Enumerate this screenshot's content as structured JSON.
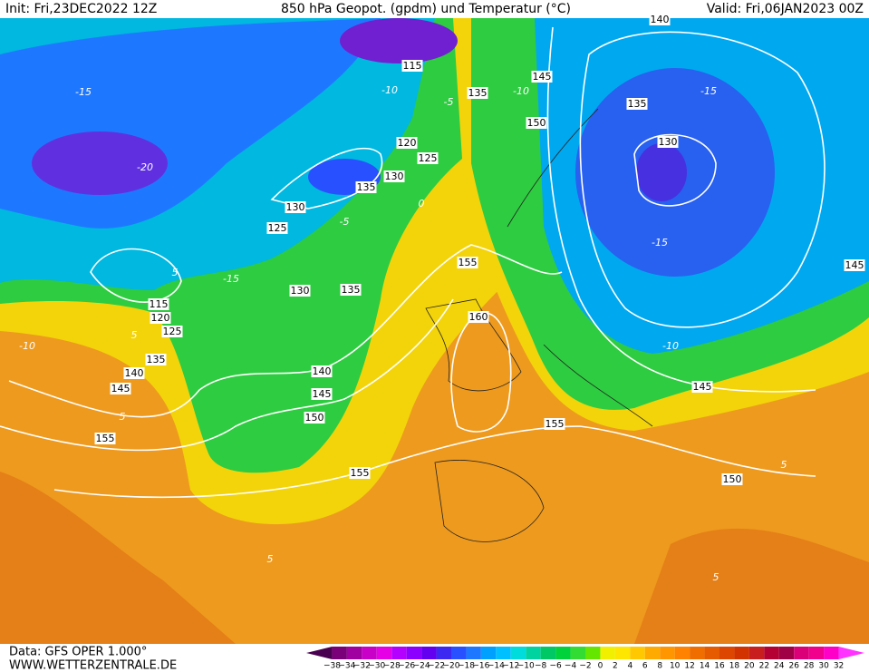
{
  "header": {
    "init": "Init: Fri,23DEC2022 12Z",
    "title": "850 hPa Geopot. (gpdm) und Temperatur (°C)",
    "valid": "Valid: Fri,06JAN2023 00Z"
  },
  "footer": {
    "data": "Data: GFS OPER 1.000°",
    "site": "WWW.WETTERZENTRALE.DE"
  },
  "legend": {
    "labels": [
      "−38",
      "−34",
      "−32",
      "−30",
      "−28",
      "−26",
      "−24",
      "−22",
      "−20",
      "−18",
      "−16",
      "−14",
      "−12",
      "−10",
      "−8",
      "−6",
      "−4",
      "−2",
      "0",
      "2",
      "4",
      "6",
      "8",
      "10",
      "12",
      "14",
      "16",
      "18",
      "20",
      "22",
      "24",
      "26",
      "28",
      "30",
      "32"
    ],
    "colors": [
      "#4a0050",
      "#7a007a",
      "#a000a0",
      "#c800c8",
      "#e600e6",
      "#b400ff",
      "#8c00ff",
      "#6400f0",
      "#3c28f0",
      "#2850ff",
      "#1e78ff",
      "#00a0ff",
      "#00c0ff",
      "#00dcdc",
      "#00d2a0",
      "#00c864",
      "#00d23c",
      "#32dc32",
      "#64e600",
      "#f0f000",
      "#ffe600",
      "#ffc800",
      "#ffaa00",
      "#ff9600",
      "#ff8200",
      "#f06e00",
      "#e65a00",
      "#dc4600",
      "#d23200",
      "#c81e1e",
      "#b40032",
      "#a00046",
      "#dc0078",
      "#f0008c",
      "#ff00c8",
      "#ff32ff"
    ]
  },
  "map": {
    "geopotential_labels": [
      "140",
      "115",
      "135",
      "145",
      "150",
      "135",
      "130",
      "120",
      "125",
      "130",
      "135",
      "130",
      "125",
      "155",
      "145",
      "130",
      "135",
      "115",
      "120",
      "125",
      "160",
      "135",
      "140",
      "145",
      "140",
      "145",
      "150",
      "145",
      "155",
      "155",
      "155",
      "150"
    ],
    "temperature_labels": [
      "-15",
      "-10",
      "-5",
      "-10",
      "-15",
      "-20",
      "5",
      "-15",
      "-15",
      "-10",
      "-5",
      "0",
      "-10",
      "5",
      "5",
      "5",
      "5",
      "5"
    ]
  }
}
